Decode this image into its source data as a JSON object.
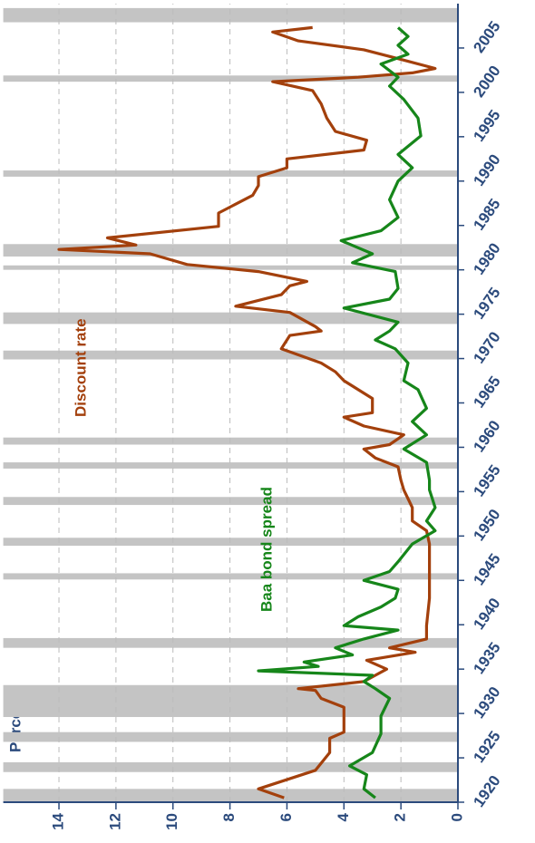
{
  "chart_data": {
    "type": "line",
    "ylabel": "Percent",
    "xlim": [
      1920,
      2010
    ],
    "xticks": [
      1920,
      1925,
      1930,
      1935,
      1940,
      1945,
      1950,
      1955,
      1960,
      1965,
      1970,
      1975,
      1980,
      1985,
      1990,
      1995,
      2000,
      2005
    ],
    "ylim": [
      0,
      15
    ],
    "yticks": [
      0,
      2,
      4,
      6,
      8,
      10,
      12,
      14
    ],
    "grid": true,
    "recession_color": "#c4c4c4",
    "recessions": [
      [
        1920.0,
        1921.5
      ],
      [
        1923.4,
        1924.5
      ],
      [
        1926.8,
        1927.9
      ],
      [
        1929.6,
        1933.2
      ],
      [
        1937.4,
        1938.5
      ],
      [
        1945.1,
        1945.8
      ],
      [
        1948.9,
        1949.8
      ],
      [
        1953.5,
        1954.4
      ],
      [
        1957.6,
        1958.3
      ],
      [
        1960.3,
        1961.1
      ],
      [
        1969.9,
        1970.9
      ],
      [
        1973.9,
        1975.2
      ],
      [
        1980.0,
        1980.5
      ],
      [
        1981.5,
        1982.9
      ],
      [
        1990.5,
        1991.2
      ],
      [
        2001.2,
        2001.9
      ],
      [
        2007.9,
        2009.5
      ]
    ],
    "series": [
      {
        "name": "Discount rate",
        "color": "#a3400c",
        "x": [
          1920.5,
          1921.5,
          1923.6,
          1925.6,
          1927.2,
          1927.9,
          1929.2,
          1930.7,
          1931.7,
          1932.6,
          1932.8,
          1933.6,
          1934.3,
          1935.0,
          1936.0,
          1936.9,
          1937.4,
          1938.4,
          1939.9,
          1943.0,
          1947.1,
          1949.1,
          1950.6,
          1951.7,
          1953.2,
          1955.2,
          1956.3,
          1957.8,
          1958.8,
          1959.8,
          1960.3,
          1961.4,
          1962.4,
          1963.4,
          1963.9,
          1965.5,
          1967.5,
          1968.5,
          1969.5,
          1971.1,
          1972.6,
          1973.1,
          1973.6,
          1975.2,
          1975.9,
          1977.2,
          1978.2,
          1978.7,
          1979.8,
          1980.6,
          1981.8,
          1982.3,
          1982.8,
          1983.6,
          1984.9,
          1986.4,
          1987.4,
          1988.4,
          1989.5,
          1990.5,
          1991.5,
          1992.5,
          1993.5,
          1994.6,
          1995.6,
          1997.1,
          1998.7,
          2000.2,
          2001.2,
          2001.7,
          2002.2,
          2002.7,
          2003.8,
          2004.8,
          2005.8,
          2006.8,
          2007.3
        ],
        "values": [
          6.1,
          7,
          5,
          4.5,
          4.5,
          4,
          4,
          4,
          4.8,
          5,
          5.6,
          3.3,
          2.9,
          2.5,
          3.2,
          1.5,
          2.4,
          1.1,
          1.1,
          1,
          1,
          1,
          1.1,
          1.6,
          1.6,
          1.9,
          2,
          2.1,
          2.9,
          3.3,
          2.4,
          1.9,
          3.3,
          4,
          3,
          3,
          4,
          4.3,
          4.8,
          6.2,
          5.9,
          4.8,
          5,
          5.9,
          7.8,
          6.2,
          5.9,
          5.3,
          7,
          9.5,
          10.8,
          14,
          11.3,
          12.3,
          8.4,
          8.4,
          7.8,
          7.2,
          7,
          7,
          6,
          6,
          3.3,
          3.2,
          4.3,
          4.6,
          4.8,
          5.1,
          6.5,
          3.5,
          1.6,
          0.8,
          2.1,
          3.3,
          5.6,
          6.5,
          5.1
        ]
      },
      {
        "name": "Baa bond spread",
        "color": "#16861a",
        "x": [
          1920.5,
          1921.5,
          1923.1,
          1924.1,
          1925.6,
          1927.7,
          1929.7,
          1931.7,
          1932.8,
          1933.6,
          1934.3,
          1934.8,
          1935.3,
          1935.8,
          1936.6,
          1937.4,
          1938.4,
          1939.4,
          1939.9,
          1940.9,
          1942.0,
          1943.0,
          1944.0,
          1945.0,
          1946.0,
          1947.1,
          1949.1,
          1950.6,
          1951.7,
          1953.2,
          1955.2,
          1956.3,
          1958.3,
          1959.8,
          1961.4,
          1962.9,
          1964.4,
          1966.5,
          1967.5,
          1969.5,
          1971.1,
          1972.1,
          1973.1,
          1974.1,
          1975.7,
          1976.7,
          1977.9,
          1979.8,
          1980.8,
          1981.8,
          1983.3,
          1984.4,
          1985.9,
          1987.9,
          1990.0,
          1991.5,
          1993.0,
          1995.1,
          1997.1,
          1999.2,
          2000.7,
          2001.7,
          2003.2,
          2004.3,
          2005.3,
          2006.3,
          2007.3
        ],
        "values": [
          2.9,
          3.3,
          3.2,
          3.8,
          3,
          2.7,
          2.7,
          2.4,
          2.9,
          3.3,
          3,
          7,
          4.9,
          5.4,
          3.7,
          4.3,
          3.3,
          2.1,
          4,
          3.5,
          2.7,
          2.2,
          2.1,
          3.3,
          2.4,
          2.1,
          1.6,
          0.8,
          1.1,
          0.8,
          1,
          1,
          1.1,
          1.9,
          1.1,
          1.6,
          1.1,
          1.4,
          1.9,
          1.75,
          2.2,
          2.9,
          2.4,
          2.1,
          4,
          2.4,
          2.1,
          2.2,
          3.7,
          3,
          4.1,
          2.7,
          2.1,
          2.4,
          2.1,
          1.6,
          2.1,
          1.3,
          1.4,
          1.9,
          2.4,
          2.1,
          2.7,
          1.75,
          2.1,
          1.75,
          2.1
        ]
      }
    ]
  }
}
